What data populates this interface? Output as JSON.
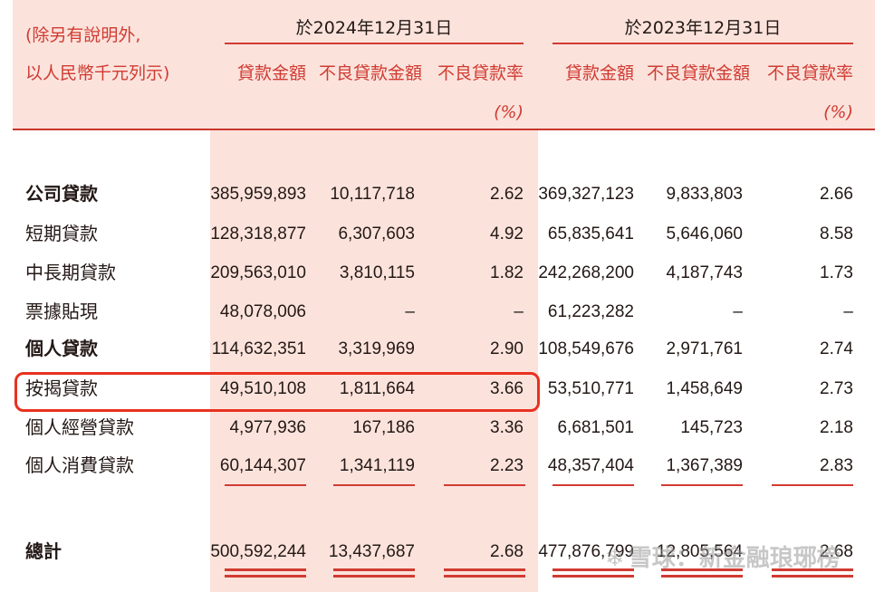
{
  "header": {
    "note_line1": "(除另有說明外,",
    "note_line2": "以人民幣千元列示)",
    "periods": [
      "於2024年12月31日",
      "於2023年12月31日"
    ],
    "columns": [
      "貸款金額",
      "不良貸款金額",
      "不良貸款率"
    ],
    "rate_unit": "(%)"
  },
  "rows": [
    {
      "label": "公司貸款",
      "bold": true,
      "v": [
        "385,959,893",
        "10,117,718",
        "2.62",
        "369,327,123",
        "9,833,803",
        "2.66"
      ]
    },
    {
      "label": "短期貸款",
      "bold": false,
      "v": [
        "128,318,877",
        "6,307,603",
        "4.92",
        "65,835,641",
        "5,646,060",
        "8.58"
      ]
    },
    {
      "label": "中長期貸款",
      "bold": false,
      "v": [
        "209,563,010",
        "3,810,115",
        "1.82",
        "242,268,200",
        "4,187,743",
        "1.73"
      ]
    },
    {
      "label": "票據貼現",
      "bold": false,
      "v": [
        "48,078,006",
        "–",
        "–",
        "61,223,282",
        "–",
        "–"
      ]
    },
    {
      "label": "個人貸款",
      "bold": true,
      "v": [
        "114,632,351",
        "3,319,969",
        "2.90",
        "108,549,676",
        "2,971,761",
        "2.74"
      ]
    },
    {
      "label": "按揭貸款",
      "bold": false,
      "v": [
        "49,510,108",
        "1,811,664",
        "3.66",
        "53,510,771",
        "1,458,649",
        "2.73"
      ]
    },
    {
      "label": "個人經營貸款",
      "bold": false,
      "v": [
        "4,977,936",
        "167,186",
        "3.36",
        "6,681,501",
        "145,723",
        "2.18"
      ]
    },
    {
      "label": "個人消費貸款",
      "bold": false,
      "v": [
        "60,144,307",
        "1,341,119",
        "2.23",
        "48,357,404",
        "1,367,389",
        "2.83"
      ]
    }
  ],
  "total": {
    "label": "總計",
    "v": [
      "500,592,244",
      "13,437,687",
      "2.68",
      "477,876,799",
      "12,805,564",
      "2.68"
    ]
  },
  "watermark": "雪球：新金融琅琊榜",
  "colors": {
    "accent": "#d13b32",
    "header_bg": "#fbe3dc",
    "highlight": "#e8311f"
  }
}
